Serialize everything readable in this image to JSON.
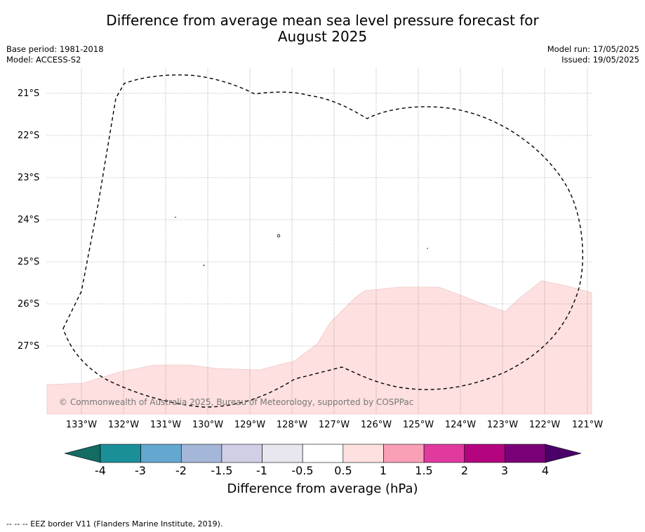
{
  "title_line1": "Difference from average mean sea level pressure forecast for",
  "title_line2": "August 2025",
  "base_period": "Base period: 1981-2018",
  "model": "Model: ACCESS-S2",
  "model_run": "Model run: 17/05/2025",
  "issued": "Issued: 19/05/2025",
  "copyright": "© Commonwealth of Australia 2025, Bureau of Meteorology, supported by COSPPac",
  "lat_labels": [
    "21°S",
    "22°S",
    "23°S",
    "24°S",
    "25°S",
    "26°S",
    "27°S"
  ],
  "lon_labels": [
    "133°W",
    "132°W",
    "131°W",
    "130°W",
    "129°W",
    "128°W",
    "127°W",
    "126°W",
    "125°W",
    "124°W",
    "123°W",
    "122°W",
    "121°W"
  ],
  "colorbar": {
    "ticks": [
      "-4",
      "-3",
      "-2",
      "-1.5",
      "-1",
      "-0.5",
      "0.5",
      "1",
      "1.5",
      "2",
      "3",
      "4"
    ],
    "colors": [
      "#136b62",
      "#1b8f98",
      "#64a7cf",
      "#a4b7d8",
      "#d0cfe6",
      "#e8e6ee",
      "#ffffff",
      "#fde0df",
      "#f9a0b7",
      "#e13a9f",
      "#b3037e",
      "#7a0077",
      "#4a0068"
    ],
    "label": "Difference from average (hPa)"
  },
  "legend_footer": "--  --  -- EEZ border V11 (Flanders Marine Institute, 2019).",
  "colors": {
    "positive_fill": "#fde0df",
    "eez_line": "#000000"
  }
}
